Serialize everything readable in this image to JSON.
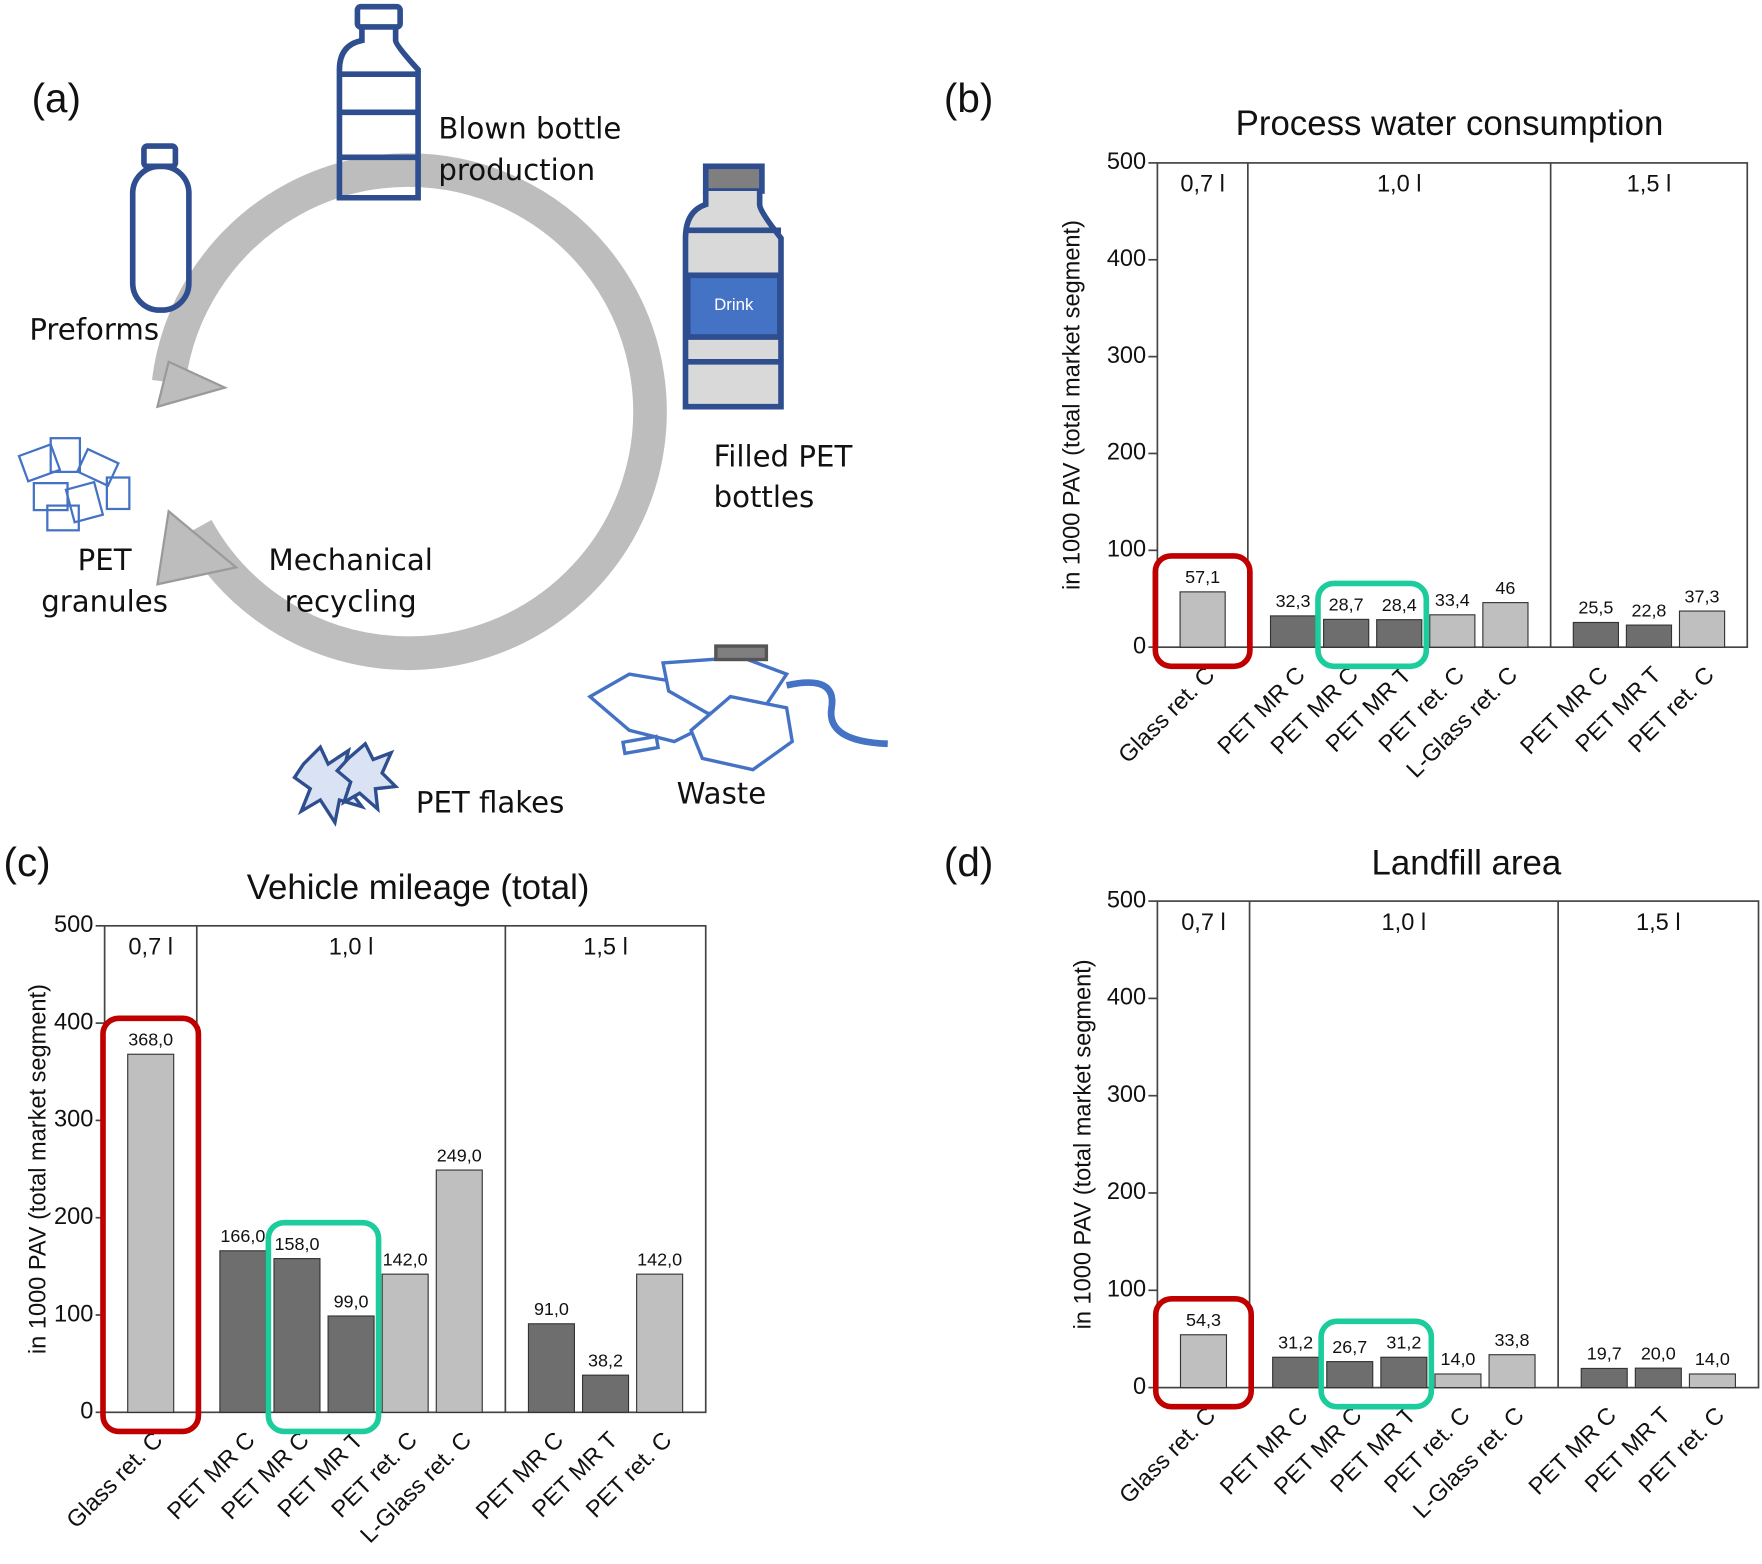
{
  "diagram": {
    "panel": "(a)",
    "labels": {
      "blown": [
        "Blown bottle",
        "production"
      ],
      "filled": [
        "Filled PET",
        "bottles"
      ],
      "drink": "Drink",
      "preforms": "Preforms",
      "granules": [
        "PET",
        "granules"
      ],
      "recycling": [
        "Mechanical",
        "recycling"
      ],
      "flakes": "PET flakes",
      "waste": "Waste"
    }
  },
  "chart_data": [
    {
      "type": "bar",
      "panel": "(b)",
      "title": "Process water consumption",
      "ylabel": "in 1000 PAV (total market segment)",
      "ylim": [
        0,
        500
      ],
      "yticks": [
        0,
        100,
        200,
        300,
        400,
        500
      ],
      "grid": false,
      "groups": [
        {
          "label": "0,7 l",
          "categories": [
            "Glass ret. C"
          ],
          "values": [
            57.1
          ],
          "value_labels": [
            "57,1"
          ],
          "colors": [
            "#bfbfbf"
          ]
        },
        {
          "label": "1,0 l",
          "categories": [
            "PET MR C",
            "PET MR C",
            "PET MR T",
            "PET ret. C",
            "L-Glass ret. C"
          ],
          "values": [
            32.3,
            28.7,
            28.4,
            33.4,
            46
          ],
          "value_labels": [
            "32,3",
            "28,7",
            "28,4",
            "33,4",
            "46"
          ],
          "colors": [
            "#6e6e6e",
            "#6e6e6e",
            "#6e6e6e",
            "#bfbfbf",
            "#bfbfbf"
          ]
        },
        {
          "label": "1,5 l",
          "categories": [
            "PET MR C",
            "PET MR T",
            "PET ret. C"
          ],
          "values": [
            25.5,
            22.8,
            37.3
          ],
          "value_labels": [
            "25,5",
            "22,8",
            "37,3"
          ],
          "colors": [
            "#6e6e6e",
            "#6e6e6e",
            "#bfbfbf"
          ]
        }
      ]
    },
    {
      "type": "bar",
      "panel": "(c)",
      "title": "Vehicle mileage (total)",
      "ylabel": "in 1000 PAV (total market segment)",
      "ylim": [
        0,
        500
      ],
      "yticks": [
        0,
        100,
        200,
        300,
        400,
        500
      ],
      "grid": false,
      "groups": [
        {
          "label": "0,7 l",
          "categories": [
            "Glass ret. C"
          ],
          "values": [
            368.0
          ],
          "value_labels": [
            "368,0"
          ],
          "colors": [
            "#bfbfbf"
          ]
        },
        {
          "label": "1,0 l",
          "categories": [
            "PET MR C",
            "PET MR C",
            "PET MR T",
            "PET ret. C",
            "L-Glass ret. C"
          ],
          "values": [
            166.0,
            158.0,
            99.0,
            142.0,
            249.0
          ],
          "value_labels": [
            "166,0",
            "158,0",
            "99,0",
            "142,0",
            "249,0"
          ],
          "colors": [
            "#6e6e6e",
            "#6e6e6e",
            "#6e6e6e",
            "#bfbfbf",
            "#bfbfbf"
          ]
        },
        {
          "label": "1,5 l",
          "categories": [
            "PET MR C",
            "PET MR T",
            "PET ret. C"
          ],
          "values": [
            91.0,
            38.2,
            142.0
          ],
          "value_labels": [
            "91,0",
            "38,2",
            "142,0"
          ],
          "colors": [
            "#6e6e6e",
            "#6e6e6e",
            "#bfbfbf"
          ]
        }
      ]
    },
    {
      "type": "bar",
      "panel": "(d)",
      "title": "Landfill area",
      "ylabel": "in 1000 PAV (total market segment)",
      "ylim": [
        0,
        500
      ],
      "yticks": [
        0,
        100,
        200,
        300,
        400,
        500
      ],
      "grid": false,
      "groups": [
        {
          "label": "0,7 l",
          "categories": [
            "Glass ret. C"
          ],
          "values": [
            54.3
          ],
          "value_labels": [
            "54,3"
          ],
          "colors": [
            "#bfbfbf"
          ]
        },
        {
          "label": "1,0 l",
          "categories": [
            "PET MR C",
            "PET MR C",
            "PET MR T",
            "PET ret. C",
            "L-Glass ret. C"
          ],
          "values": [
            31.2,
            26.7,
            31.2,
            14.0,
            33.8
          ],
          "value_labels": [
            "31,2",
            "26,7",
            "31,2",
            "14,0",
            "33,8"
          ],
          "colors": [
            "#6e6e6e",
            "#6e6e6e",
            "#6e6e6e",
            "#bfbfbf",
            "#bfbfbf"
          ]
        },
        {
          "label": "1,5 l",
          "categories": [
            "PET MR C",
            "PET MR T",
            "PET ret. C"
          ],
          "values": [
            19.7,
            20.0,
            14.0
          ],
          "value_labels": [
            "19,7",
            "20,0",
            "14,0"
          ],
          "colors": [
            "#6e6e6e",
            "#6e6e6e",
            "#bfbfbf"
          ]
        }
      ]
    }
  ]
}
